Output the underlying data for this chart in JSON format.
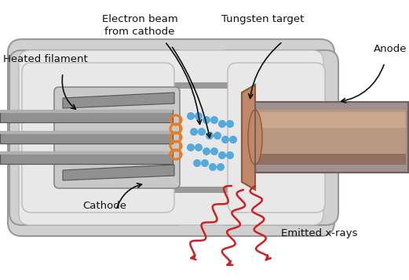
{
  "bg_color": "#ffffff",
  "tube_outer_color": "#d0d0d0",
  "tube_outer_edge": "#999999",
  "tube_inner_color": "#e8e8e8",
  "tube_inner_edge": "#bbbbbb",
  "cathode_box_color": "#d4d4d4",
  "cathode_box_edge": "#999999",
  "plate_color": "#909090",
  "plate_edge": "#555555",
  "plate_dark": "#707070",
  "filament_color": "#e87c1e",
  "electron_color": "#55aadd",
  "tungsten_color": "#c08868",
  "tungsten_edge": "#8a5a3a",
  "anode_rect_color": "#a09090",
  "anode_rect_edge": "#706060",
  "anode_cyl_color": "#b89880",
  "anode_cyl_light": "#d4b090",
  "xray_color": "#cc2222",
  "arrow_color": "#111111",
  "label_color": "#111111",
  "labels": {
    "heated_filament": "Heated filament",
    "electron_beam": "Electron beam\nfrom cathode",
    "tungsten_target": "Tungsten target",
    "anode": "Anode",
    "cathode": "Cathode",
    "emitted_xrays": "Emitted x-rays"
  },
  "figsize": [
    5.21,
    3.57
  ],
  "dpi": 100
}
